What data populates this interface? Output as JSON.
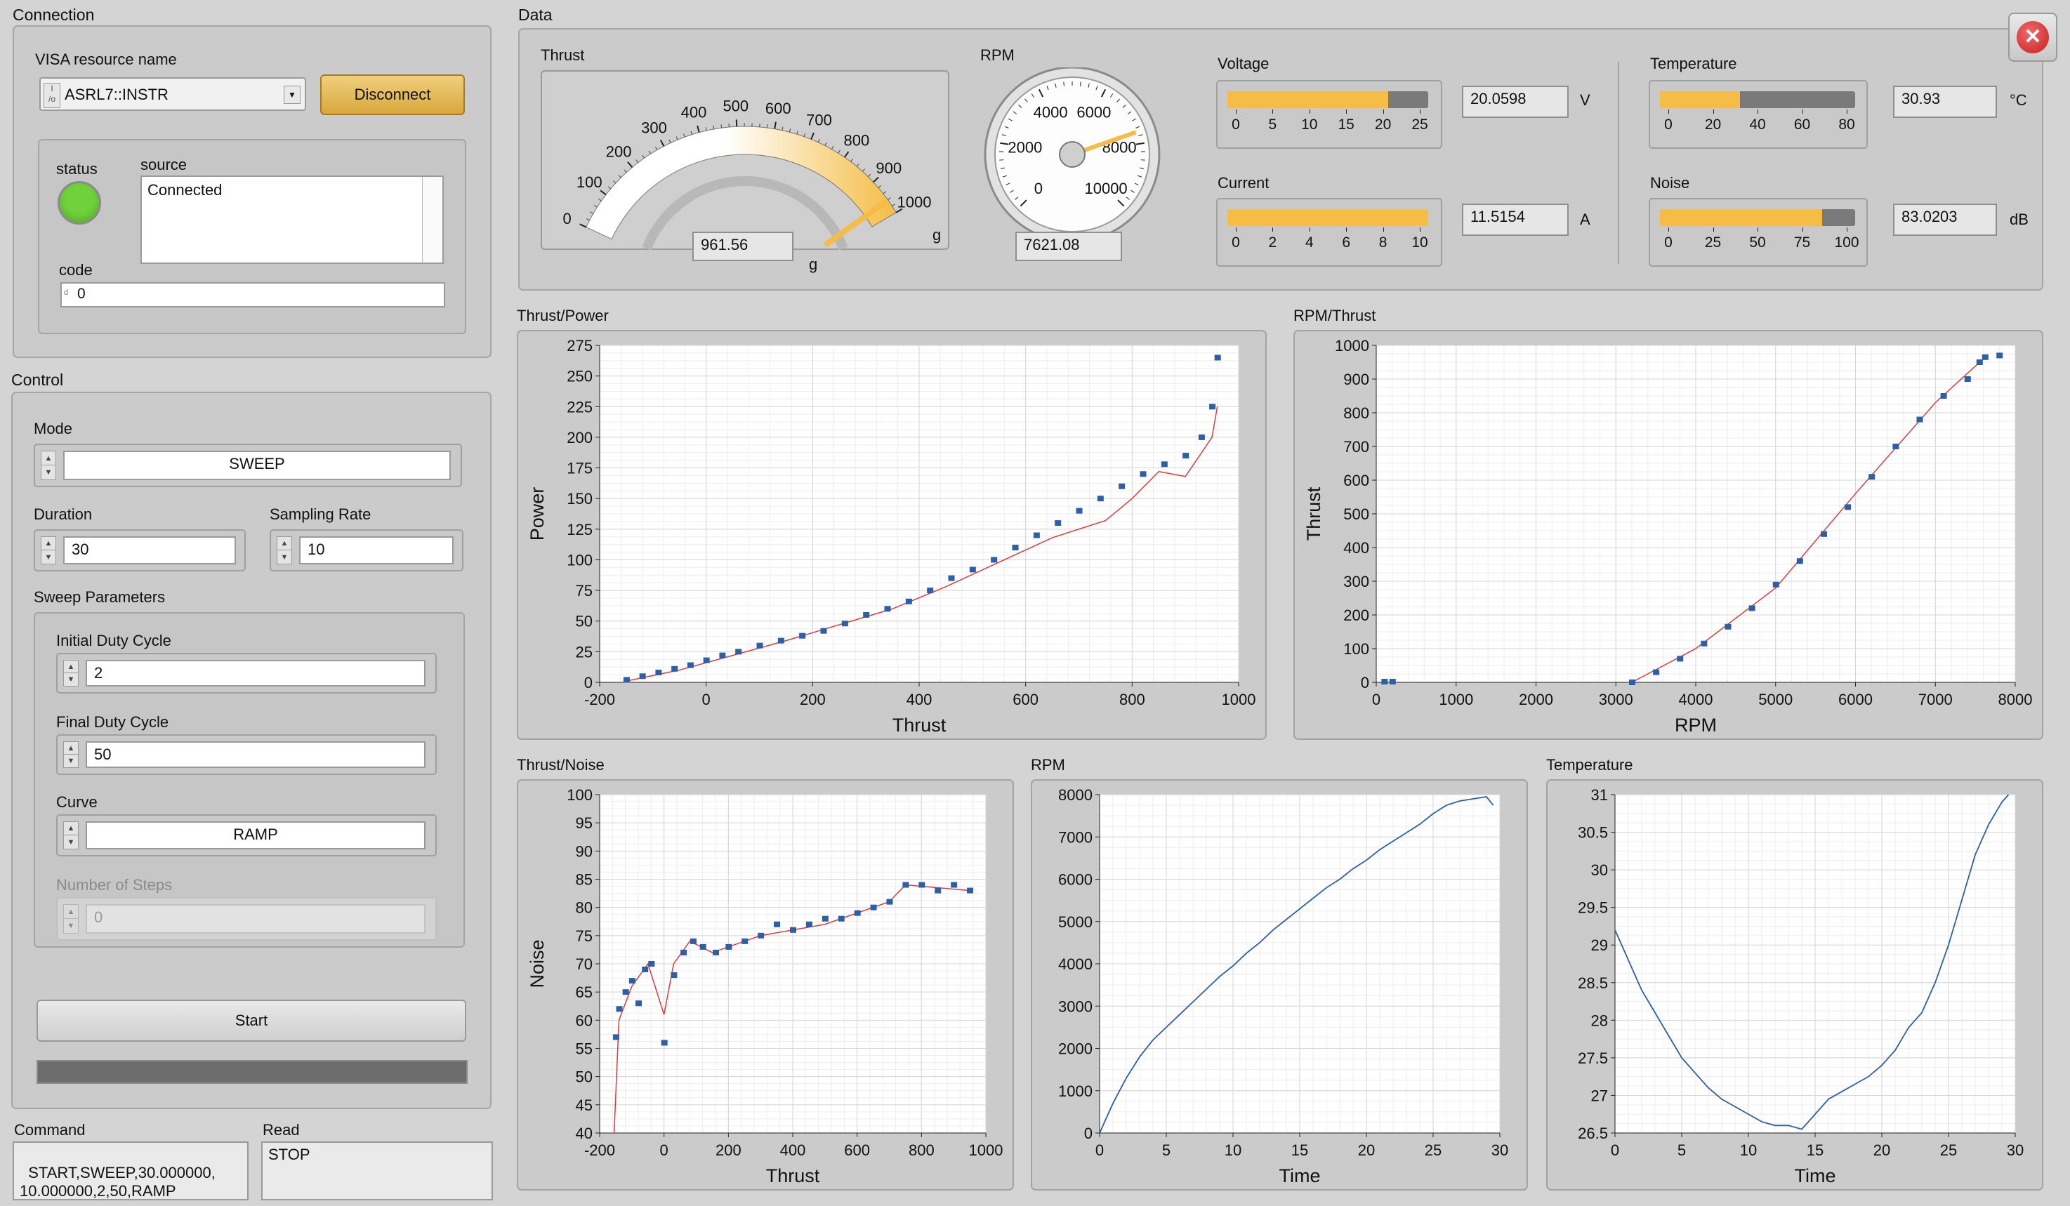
{
  "connection": {
    "title": "Connection",
    "visa_label": "VISA resource name",
    "visa_value": "ASRL7::INSTR",
    "disconnect_label": "Disconnect",
    "status_label": "status",
    "source_label": "source",
    "source_value": "Connected",
    "code_label": "code",
    "code_value": "0",
    "status_color": "#6fd23a"
  },
  "control": {
    "title": "Control",
    "mode_label": "Mode",
    "mode_value": "SWEEP",
    "duration_label": "Duration",
    "duration_value": "30",
    "sampling_label": "Sampling Rate",
    "sampling_value": "10",
    "sweep_title": "Sweep Parameters",
    "initial_label": "Initial Duty Cycle",
    "initial_value": "2",
    "final_label": "Final Duty Cycle",
    "final_value": "50",
    "curve_label": "Curve",
    "curve_value": "RAMP",
    "steps_label": "Number of Steps",
    "steps_value": "0",
    "start_label": "Start",
    "progress": 0
  },
  "command": {
    "label": "Command",
    "value": "START,SWEEP,30.000000,\n10.000000,2,50,RAMP"
  },
  "read": {
    "label": "Read",
    "value": "STOP"
  },
  "data": {
    "title": "Data",
    "thrust": {
      "label": "Thrust",
      "value": "961.56",
      "unit_top": "g",
      "unit_bottom": "g",
      "ticks": [
        "0",
        "100",
        "200",
        "300",
        "400",
        "500",
        "600",
        "700",
        "800",
        "900",
        "1000"
      ],
      "level": 961.56
    },
    "rpm": {
      "label": "RPM",
      "value": "7621.08",
      "ticks": [
        "0",
        "2000",
        "4000",
        "6000",
        "8000",
        "10000"
      ],
      "level": 7621.08
    },
    "voltage": {
      "label": "Voltage",
      "value": "20.0598",
      "unit": "V",
      "ticks": [
        "0",
        "5",
        "10",
        "15",
        "20",
        "25"
      ],
      "fill": 0.8
    },
    "current": {
      "label": "Current",
      "value": "11.5154",
      "unit": "A",
      "ticks": [
        "0",
        "2",
        "4",
        "6",
        "8",
        "10"
      ],
      "fill": 1.0
    },
    "temperature": {
      "label": "Temperature",
      "value": "30.93",
      "unit": "°C",
      "ticks": [
        "0",
        "20",
        "40",
        "60",
        "80"
      ],
      "fill": 0.41
    },
    "noise": {
      "label": "Noise",
      "value": "83.0203",
      "unit": "dB",
      "ticks": [
        "0",
        "25",
        "50",
        "75",
        "100"
      ],
      "fill": 0.83
    },
    "accent_color": "#f5bd45"
  },
  "chart_data": [
    {
      "panel_label": "Thrust/Power",
      "type": "scatter",
      "xlabel": "Thrust",
      "ylabel": "Power",
      "xlim": [
        -200,
        1000
      ],
      "ylim": [
        0,
        275
      ],
      "xticks": [
        "-200",
        "0",
        "200",
        "400",
        "600",
        "800",
        "1000"
      ],
      "yticks": [
        "0",
        "25",
        "50",
        "75",
        "100",
        "125",
        "150",
        "175",
        "200",
        "225",
        "250",
        "275"
      ],
      "points": [
        [
          -150,
          2
        ],
        [
          -120,
          5
        ],
        [
          -90,
          8
        ],
        [
          -60,
          11
        ],
        [
          -30,
          14
        ],
        [
          0,
          18
        ],
        [
          30,
          22
        ],
        [
          60,
          25
        ],
        [
          100,
          30
        ],
        [
          140,
          34
        ],
        [
          180,
          38
        ],
        [
          220,
          42
        ],
        [
          260,
          48
        ],
        [
          300,
          55
        ],
        [
          340,
          60
        ],
        [
          380,
          66
        ],
        [
          420,
          75
        ],
        [
          460,
          85
        ],
        [
          500,
          92
        ],
        [
          540,
          100
        ],
        [
          580,
          110
        ],
        [
          620,
          120
        ],
        [
          660,
          130
        ],
        [
          700,
          140
        ],
        [
          740,
          150
        ],
        [
          780,
          160
        ],
        [
          820,
          170
        ],
        [
          860,
          178
        ],
        [
          900,
          185
        ],
        [
          930,
          200
        ],
        [
          950,
          225
        ],
        [
          960,
          265
        ]
      ],
      "fit": [
        [
          -150,
          1
        ],
        [
          -50,
          10
        ],
        [
          50,
          22
        ],
        [
          150,
          34
        ],
        [
          250,
          47
        ],
        [
          350,
          60
        ],
        [
          450,
          78
        ],
        [
          550,
          98
        ],
        [
          650,
          118
        ],
        [
          750,
          132
        ],
        [
          800,
          150
        ],
        [
          850,
          172
        ],
        [
          900,
          168
        ],
        [
          950,
          200
        ],
        [
          960,
          225
        ]
      ]
    },
    {
      "panel_label": "RPM/Thrust",
      "type": "scatter",
      "xlabel": "RPM",
      "ylabel": "Thrust",
      "xlim": [
        0,
        8000
      ],
      "ylim": [
        0,
        1000
      ],
      "xticks": [
        "0",
        "1000",
        "2000",
        "3000",
        "4000",
        "5000",
        "6000",
        "7000",
        "8000"
      ],
      "yticks": [
        "0",
        "100",
        "200",
        "300",
        "400",
        "500",
        "600",
        "700",
        "800",
        "900",
        "1000"
      ],
      "points": [
        [
          100,
          2
        ],
        [
          200,
          2
        ],
        [
          3200,
          0
        ],
        [
          3500,
          30
        ],
        [
          3800,
          70
        ],
        [
          4100,
          115
        ],
        [
          4400,
          165
        ],
        [
          4700,
          220
        ],
        [
          5000,
          290
        ],
        [
          5300,
          360
        ],
        [
          5600,
          440
        ],
        [
          5900,
          520
        ],
        [
          6200,
          610
        ],
        [
          6500,
          700
        ],
        [
          6800,
          780
        ],
        [
          7100,
          850
        ],
        [
          7400,
          900
        ],
        [
          7550,
          950
        ],
        [
          7620,
          965
        ],
        [
          7800,
          970
        ]
      ],
      "fit": [
        [
          3200,
          0
        ],
        [
          4000,
          100
        ],
        [
          5000,
          280
        ],
        [
          6000,
          560
        ],
        [
          7000,
          830
        ],
        [
          7600,
          960
        ]
      ]
    },
    {
      "panel_label": "Thrust/Noise",
      "type": "scatter",
      "xlabel": "Thrust",
      "ylabel": "Noise",
      "xlim": [
        -200,
        1000
      ],
      "ylim": [
        40,
        100
      ],
      "xticks": [
        "-200",
        "0",
        "200",
        "400",
        "600",
        "800",
        "1000"
      ],
      "yticks": [
        "40",
        "45",
        "50",
        "55",
        "60",
        "65",
        "70",
        "75",
        "80",
        "85",
        "90",
        "95",
        "100"
      ],
      "points": [
        [
          -150,
          57
        ],
        [
          -140,
          62
        ],
        [
          -120,
          65
        ],
        [
          -100,
          67
        ],
        [
          -80,
          63
        ],
        [
          -60,
          69
        ],
        [
          -40,
          70
        ],
        [
          0,
          56
        ],
        [
          30,
          68
        ],
        [
          60,
          72
        ],
        [
          90,
          74
        ],
        [
          120,
          73
        ],
        [
          160,
          72
        ],
        [
          200,
          73
        ],
        [
          250,
          74
        ],
        [
          300,
          75
        ],
        [
          350,
          77
        ],
        [
          400,
          76
        ],
        [
          450,
          77
        ],
        [
          500,
          78
        ],
        [
          550,
          78
        ],
        [
          600,
          79
        ],
        [
          650,
          80
        ],
        [
          700,
          81
        ],
        [
          750,
          84
        ],
        [
          800,
          84
        ],
        [
          850,
          83
        ],
        [
          900,
          84
        ],
        [
          950,
          83
        ]
      ],
      "fit": [
        [
          -155,
          40
        ],
        [
          -140,
          60
        ],
        [
          -100,
          66
        ],
        [
          -50,
          70
        ],
        [
          0,
          61
        ],
        [
          30,
          70
        ],
        [
          80,
          74
        ],
        [
          150,
          72
        ],
        [
          300,
          75
        ],
        [
          500,
          77
        ],
        [
          700,
          81
        ],
        [
          750,
          84
        ],
        [
          950,
          83
        ]
      ]
    },
    {
      "panel_label": "RPM",
      "type": "line",
      "xlabel": "Time",
      "ylabel": "",
      "xlim": [
        0,
        30
      ],
      "ylim": [
        0,
        8000
      ],
      "xticks": [
        "0",
        "5",
        "10",
        "15",
        "20",
        "25",
        "30"
      ],
      "yticks": [
        "0",
        "1000",
        "2000",
        "3000",
        "4000",
        "5000",
        "6000",
        "7000",
        "8000"
      ],
      "x": [
        0,
        1,
        2,
        3,
        4,
        5,
        6,
        7,
        8,
        9,
        10,
        11,
        12,
        13,
        14,
        15,
        16,
        17,
        18,
        19,
        20,
        21,
        22,
        23,
        24,
        25,
        26,
        27,
        28,
        29,
        29.5
      ],
      "y": [
        0,
        700,
        1300,
        1800,
        2200,
        2500,
        2800,
        3100,
        3400,
        3700,
        3950,
        4250,
        4500,
        4800,
        5050,
        5300,
        5550,
        5800,
        6000,
        6250,
        6450,
        6700,
        6900,
        7100,
        7300,
        7550,
        7750,
        7850,
        7900,
        7950,
        7750
      ]
    },
    {
      "panel_label": "Temperature",
      "type": "line",
      "xlabel": "Time",
      "ylabel": "",
      "xlim": [
        0,
        30
      ],
      "ylim": [
        26.5,
        31
      ],
      "xticks": [
        "0",
        "5",
        "10",
        "15",
        "20",
        "25",
        "30"
      ],
      "yticks": [
        "26.5",
        "27",
        "27.5",
        "28",
        "28.5",
        "29",
        "29.5",
        "30",
        "30.5",
        "31"
      ],
      "x": [
        0,
        1,
        2,
        3,
        4,
        5,
        6,
        7,
        8,
        9,
        10,
        11,
        12,
        13,
        14,
        15,
        16,
        17,
        18,
        19,
        20,
        21,
        22,
        23,
        24,
        25,
        26,
        27,
        28,
        29,
        29.5
      ],
      "y": [
        29.2,
        28.8,
        28.4,
        28.1,
        27.8,
        27.5,
        27.3,
        27.1,
        26.95,
        26.85,
        26.75,
        26.65,
        26.6,
        26.6,
        26.55,
        26.75,
        26.95,
        27.05,
        27.15,
        27.25,
        27.4,
        27.6,
        27.9,
        28.1,
        28.5,
        29.0,
        29.6,
        30.2,
        30.6,
        30.9,
        31.0
      ]
    }
  ]
}
